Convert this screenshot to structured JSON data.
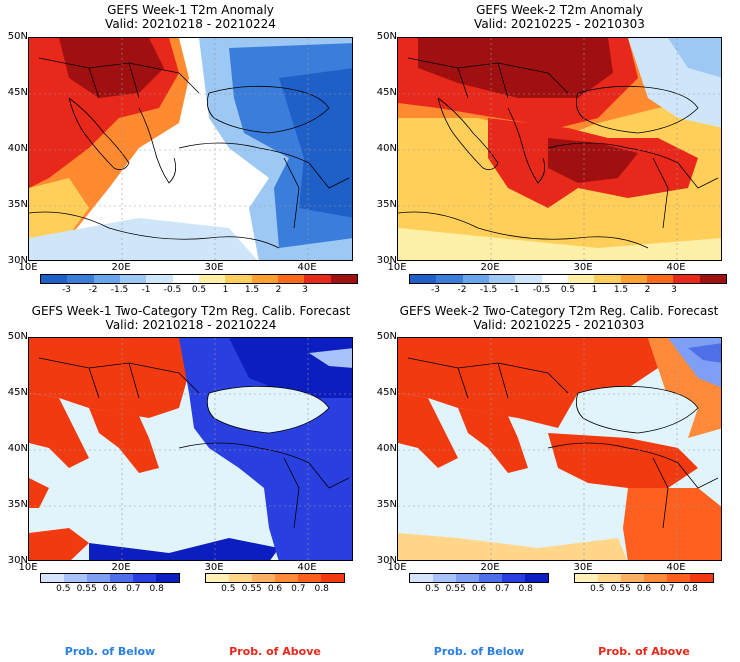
{
  "panels": {
    "p1": {
      "title": "GEFS Week-1 T2m Anomaly",
      "valid": "Valid: 20210218 - 20210224"
    },
    "p2": {
      "title": "GEFS Week-2 T2m Anomaly",
      "valid": "Valid: 20210225 - 20210303"
    },
    "p3": {
      "title": "GEFS Week-1 Two-Category T2m Reg. Calib. Forecast",
      "valid": "Valid: 20210218 - 20210224"
    },
    "p4": {
      "title": "GEFS Week-2 Two-Category T2m Reg. Calib. Forecast",
      "valid": "Valid: 20210225 - 20210303"
    }
  },
  "lat_labels": [
    "50N",
    "45N",
    "40N",
    "35N",
    "30N"
  ],
  "lon_labels": [
    "10E",
    "20E",
    "30E",
    "40E"
  ],
  "anomaly_colorbar": {
    "labels": [
      "-3",
      "-2",
      "-1.5",
      "-1",
      "-0.5",
      "0.5",
      "1",
      "1.5",
      "2",
      "3"
    ],
    "colors": [
      "#1f5fc8",
      "#3b7ddb",
      "#6aa4ea",
      "#9cc8f3",
      "#cfe6fa",
      "#ffffff",
      "#fff0a8",
      "#ffcf5a",
      "#ffa030",
      "#ff6a1a",
      "#e8281a",
      "#a01010"
    ]
  },
  "below_colorbar": {
    "labels": [
      "0.5",
      "0.55",
      "0.6",
      "0.7",
      "0.8"
    ],
    "colors": [
      "#d6e4ff",
      "#a8c2fb",
      "#7f9ef5",
      "#4f6fe8",
      "#2a3fe0",
      "#0c1ec0"
    ]
  },
  "above_colorbar": {
    "labels": [
      "0.5",
      "0.55",
      "0.6",
      "0.7",
      "0.8"
    ],
    "colors": [
      "#fff1b8",
      "#ffd68a",
      "#ffb060",
      "#ff8a3a",
      "#ff6020",
      "#f23a10"
    ]
  },
  "footer": {
    "below": "Prob. of Below",
    "above": "Prob. of Above"
  }
}
